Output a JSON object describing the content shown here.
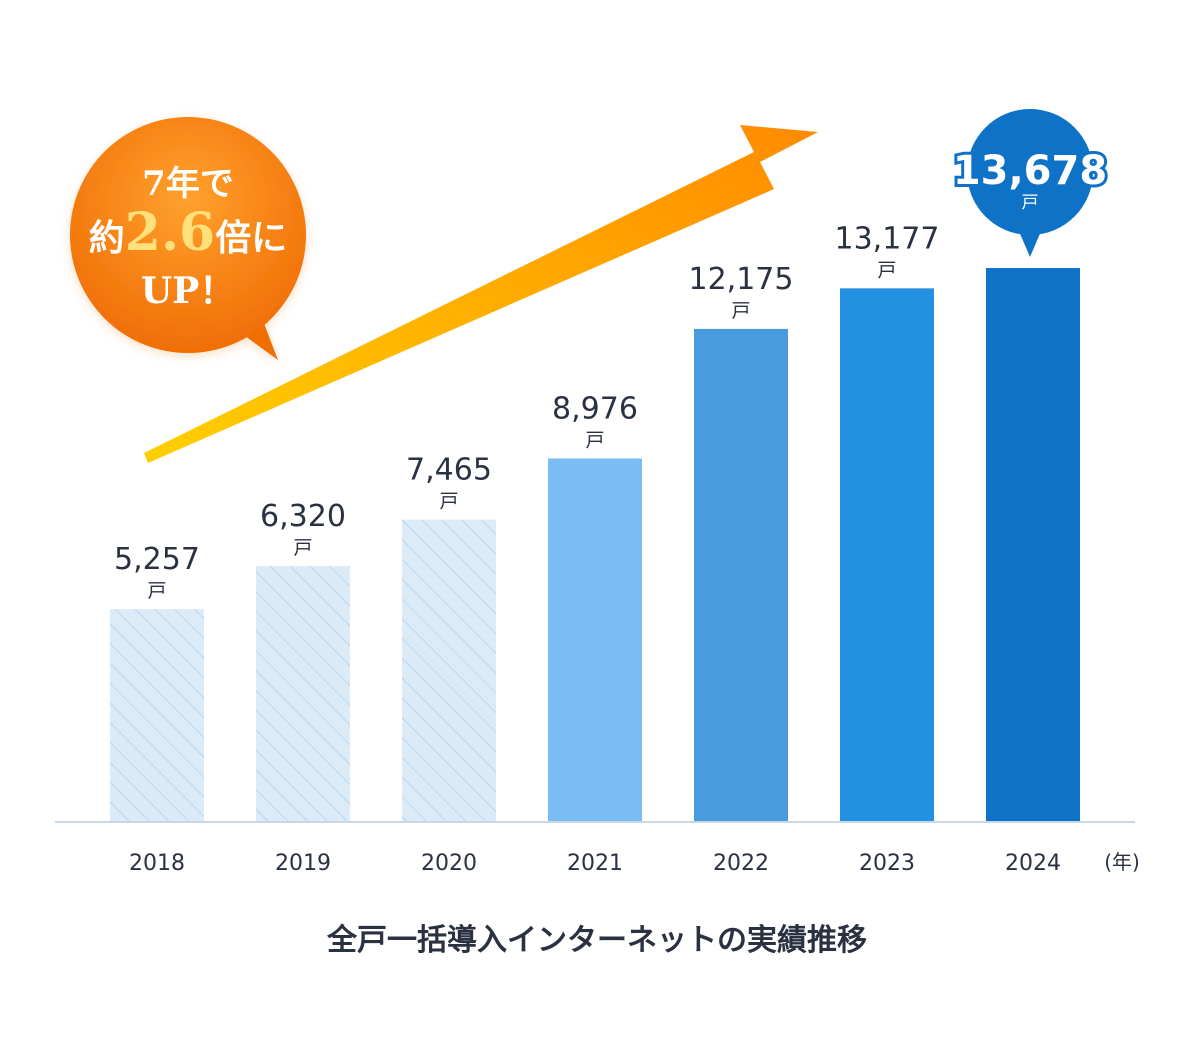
{
  "chart_data": {
    "type": "bar",
    "categories": [
      "2018",
      "2019",
      "2020",
      "2021",
      "2022",
      "2023",
      "2024"
    ],
    "values": [
      5257,
      6320,
      7465,
      8976,
      12175,
      13177,
      13678
    ],
    "value_labels": [
      "5,257",
      "6,320",
      "7,465",
      "8,976",
      "12,175",
      "13,177",
      "13,678"
    ],
    "value_unit": "戸",
    "x_unit": "(年)",
    "title": "全戸一括導入インターネットの実績推移",
    "ylim": [
      0,
      15000
    ],
    "grid": false,
    "bar_colors": [
      "#dcebf8",
      "#dcebf8",
      "#dcebf8",
      "#7bbcf5",
      "#4a9ade",
      "#2490e2",
      "#0e72c6"
    ],
    "bar_hatched": [
      true,
      true,
      true,
      false,
      false,
      false,
      false
    ],
    "highlight_category": "2024"
  },
  "callout": {
    "line1": "7年で",
    "line2_pre": "約",
    "line2_num": "2.6",
    "line2_post": "倍に",
    "line3": "UP！",
    "color": "#f47a0c"
  },
  "colors": {
    "axis": "#c8d8e6",
    "text": "#2a3140",
    "arrow_start": "#ffd000",
    "arrow_end": "#ff8a00",
    "highlight_bubble": "#0e72c6"
  }
}
